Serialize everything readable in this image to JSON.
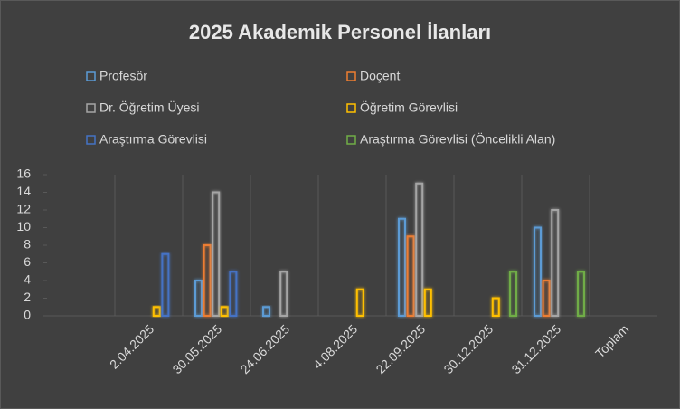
{
  "chart_data": {
    "type": "bar",
    "title": "2025 Akademik Personel İlanları",
    "categories": [
      null,
      "2.04.2025",
      "30.05.2025",
      "24.06.2025",
      "4.08.2025",
      "22.09.2025",
      "30.12.2025",
      "31.12.2025",
      "Toplam"
    ],
    "series": [
      {
        "name": "Profesör",
        "color": "#5b9bd5",
        "values": [
          null,
          null,
          4,
          1,
          null,
          11,
          null,
          10,
          null
        ]
      },
      {
        "name": "Doçent",
        "color": "#ed7d31",
        "values": [
          null,
          null,
          8,
          null,
          null,
          9,
          null,
          4,
          null
        ]
      },
      {
        "name": "Dr. Öğretim Üyesi",
        "color": "#a5a5a5",
        "values": [
          null,
          null,
          14,
          5,
          null,
          15,
          null,
          12,
          null
        ]
      },
      {
        "name": "Öğretim Görevlisi",
        "color": "#ffc000",
        "values": [
          null,
          1,
          1,
          null,
          3,
          3,
          2,
          null,
          null
        ]
      },
      {
        "name": "Araştırma Görevlisi",
        "color": "#4472c4",
        "values": [
          null,
          7,
          5,
          null,
          null,
          null,
          null,
          null,
          null
        ]
      },
      {
        "name": "Araştırma Görevlisi (Öncelikli Alan)",
        "color": "#70ad47",
        "values": [
          null,
          null,
          null,
          null,
          null,
          null,
          5,
          5,
          null
        ]
      }
    ],
    "ylim": [
      0,
      16
    ],
    "yticks": [
      0,
      2,
      4,
      6,
      8,
      10,
      12,
      14,
      16
    ]
  }
}
